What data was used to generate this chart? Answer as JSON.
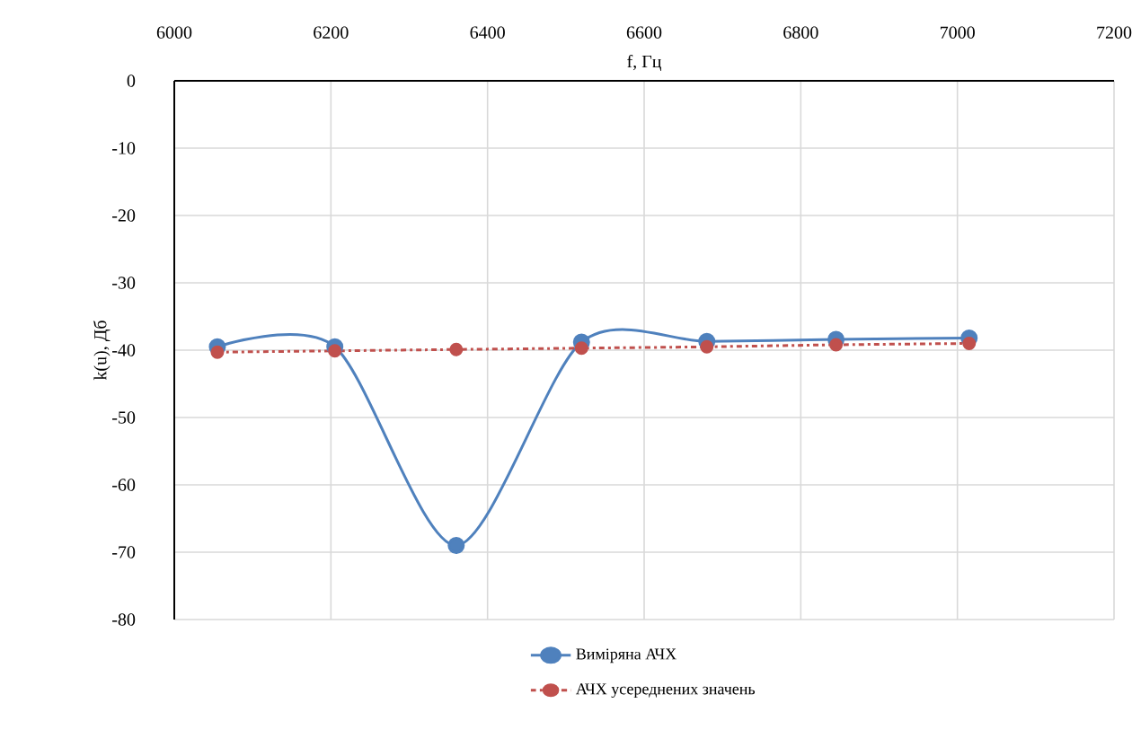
{
  "chart_data": {
    "type": "line",
    "xlabel": "f, Гц",
    "ylabel": "k(u), Дб",
    "xlim": [
      6000,
      7200
    ],
    "xticks": [
      6000,
      6200,
      6400,
      6600,
      6800,
      7000,
      7200
    ],
    "ylim": [
      -80,
      0
    ],
    "yticks": [
      0,
      -10,
      -20,
      -30,
      -40,
      -50,
      -60,
      -70,
      -80
    ],
    "grid": true,
    "legend": "bottom",
    "marker": "circle",
    "series": [
      {
        "name": "Виміряна АЧХ",
        "color": "#4f81bd",
        "line_style": "solid",
        "x": [
          6055,
          6205,
          6360,
          6520,
          6680,
          6845,
          7015
        ],
        "values": [
          -39.5,
          -39.5,
          -69,
          -38.8,
          -38.7,
          -38.4,
          -38.2
        ]
      },
      {
        "name": "АЧХ усереднених значень",
        "color": "#c0504d",
        "line_style": "dashdot",
        "x": [
          6055,
          6205,
          6360,
          6520,
          6680,
          6845,
          7015
        ],
        "values": [
          -40.3,
          -40.1,
          -39.9,
          -39.7,
          -39.5,
          -39.2,
          -39.0
        ]
      }
    ]
  }
}
